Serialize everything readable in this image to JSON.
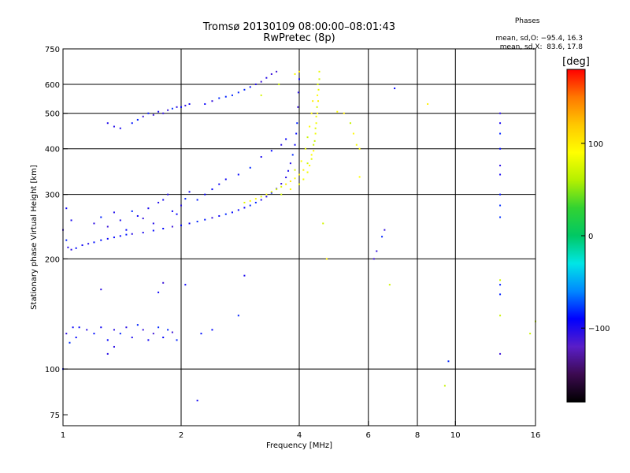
{
  "title_line1": "Tromsø 20130109 08:00:00–08:01:43",
  "title_line2": "RwPretec (8p)",
  "phase_box": {
    "heading": "Phases",
    "line_o": "mean, sd,O: −95.4, 16.3",
    "line_x": "mean, sd,X:  83.6, 17.8"
  },
  "colorbar": {
    "label": "[deg]",
    "ticks": [
      {
        "value": 100,
        "label": "100"
      },
      {
        "value": 0,
        "label": "0"
      },
      {
        "value": -100,
        "label": "−100"
      }
    ],
    "range": [
      -180,
      180
    ],
    "colors": [
      "#000000",
      "#3c0a50",
      "#5a1ec8",
      "#0000ff",
      "#0088ff",
      "#00e6e6",
      "#00c864",
      "#32d232",
      "#b4f000",
      "#ffff00",
      "#ffc800",
      "#ff7800",
      "#ff0000"
    ]
  },
  "chart_data": {
    "type": "scatter",
    "xlabel": "Frequency [MHz]",
    "ylabel": "Stationary phase Virtual Height [km]",
    "x_scale": "log",
    "y_scale": "log",
    "xlim": [
      1,
      16
    ],
    "ylim": [
      70,
      750
    ],
    "x_ticks": [
      {
        "v": 1,
        "label": "1"
      },
      {
        "v": 2,
        "label": "2"
      },
      {
        "v": 4,
        "label": "4"
      },
      {
        "v": 6,
        "label": "6"
      },
      {
        "v": 8,
        "label": "8"
      },
      {
        "v": 10,
        "label": "10"
      },
      {
        "v": 16,
        "label": "16"
      }
    ],
    "y_ticks": [
      {
        "v": 75,
        "label": "75"
      },
      {
        "v": 100,
        "label": "100"
      },
      {
        "v": 200,
        "label": "200"
      },
      {
        "v": 300,
        "label": "300"
      },
      {
        "v": 400,
        "label": "400"
      },
      {
        "v": 500,
        "label": "500"
      },
      {
        "v": 600,
        "label": "600"
      },
      {
        "v": 750,
        "label": "750"
      }
    ],
    "x_grid": [
      1,
      2,
      4,
      6,
      8,
      10,
      16
    ],
    "y_grid": [
      100,
      200,
      300,
      400,
      500,
      600
    ],
    "series": [
      {
        "name": "O",
        "phase_mean": -95.4,
        "phase_sd": 16.3,
        "points": [
          [
            1.0,
            240
          ],
          [
            1.02,
            225
          ],
          [
            1.03,
            215
          ],
          [
            1.05,
            212
          ],
          [
            1.08,
            214
          ],
          [
            1.12,
            218
          ],
          [
            1.16,
            220
          ],
          [
            1.2,
            222
          ],
          [
            1.25,
            225
          ],
          [
            1.3,
            227
          ],
          [
            1.35,
            229
          ],
          [
            1.4,
            231
          ],
          [
            1.45,
            233
          ],
          [
            1.5,
            234
          ],
          [
            1.6,
            236
          ],
          [
            1.7,
            239
          ],
          [
            1.8,
            242
          ],
          [
            1.9,
            245
          ],
          [
            2.0,
            247
          ],
          [
            2.1,
            250
          ],
          [
            2.2,
            253
          ],
          [
            2.3,
            256
          ],
          [
            2.4,
            259
          ],
          [
            2.5,
            262
          ],
          [
            2.6,
            265
          ],
          [
            2.7,
            268
          ],
          [
            2.8,
            272
          ],
          [
            2.9,
            276
          ],
          [
            3.0,
            280
          ],
          [
            3.1,
            285
          ],
          [
            3.2,
            290
          ],
          [
            3.3,
            296
          ],
          [
            3.4,
            303
          ],
          [
            3.5,
            311
          ],
          [
            3.6,
            321
          ],
          [
            3.7,
            334
          ],
          [
            3.75,
            348
          ],
          [
            3.8,
            365
          ],
          [
            3.85,
            385
          ],
          [
            3.9,
            410
          ],
          [
            3.93,
            440
          ],
          [
            3.95,
            470
          ],
          [
            3.97,
            520
          ],
          [
            3.98,
            570
          ],
          [
            4.0,
            620
          ],
          [
            1.02,
            275
          ],
          [
            1.05,
            255
          ],
          [
            1.2,
            250
          ],
          [
            1.25,
            260
          ],
          [
            1.3,
            245
          ],
          [
            1.35,
            268
          ],
          [
            1.4,
            255
          ],
          [
            1.45,
            240
          ],
          [
            1.5,
            270
          ],
          [
            1.55,
            262
          ],
          [
            1.6,
            258
          ],
          [
            1.65,
            275
          ],
          [
            1.7,
            250
          ],
          [
            1.75,
            285
          ],
          [
            1.8,
            290
          ],
          [
            1.85,
            300
          ],
          [
            1.9,
            270
          ],
          [
            1.95,
            265
          ],
          [
            2.0,
            280
          ],
          [
            2.05,
            292
          ],
          [
            2.1,
            305
          ],
          [
            2.2,
            290
          ],
          [
            2.3,
            300
          ],
          [
            2.4,
            310
          ],
          [
            2.5,
            320
          ],
          [
            2.6,
            330
          ],
          [
            2.8,
            340
          ],
          [
            3.0,
            355
          ],
          [
            3.2,
            380
          ],
          [
            3.4,
            395
          ],
          [
            3.6,
            410
          ],
          [
            3.7,
            425
          ],
          [
            1.3,
            470
          ],
          [
            1.35,
            460
          ],
          [
            1.4,
            455
          ],
          [
            1.5,
            470
          ],
          [
            1.55,
            480
          ],
          [
            1.6,
            490
          ],
          [
            1.65,
            500
          ],
          [
            1.7,
            495
          ],
          [
            1.75,
            505
          ],
          [
            1.8,
            500
          ],
          [
            1.85,
            510
          ],
          [
            1.9,
            515
          ],
          [
            1.95,
            520
          ],
          [
            2.0,
            520
          ],
          [
            2.05,
            525
          ],
          [
            2.1,
            530
          ],
          [
            2.3,
            530
          ],
          [
            2.4,
            540
          ],
          [
            2.5,
            550
          ],
          [
            2.6,
            555
          ],
          [
            2.7,
            560
          ],
          [
            2.8,
            570
          ],
          [
            2.9,
            580
          ],
          [
            3.0,
            590
          ],
          [
            3.1,
            600
          ],
          [
            3.2,
            610
          ],
          [
            3.3,
            625
          ],
          [
            3.4,
            640
          ],
          [
            3.5,
            650
          ],
          [
            1.1,
            130
          ],
          [
            1.15,
            128
          ],
          [
            1.2,
            125
          ],
          [
            1.25,
            130
          ],
          [
            1.3,
            120
          ],
          [
            1.35,
            128
          ],
          [
            1.4,
            125
          ],
          [
            1.45,
            130
          ],
          [
            1.5,
            122
          ],
          [
            1.55,
            132
          ],
          [
            1.6,
            128
          ],
          [
            1.65,
            120
          ],
          [
            1.7,
            125
          ],
          [
            1.75,
            130
          ],
          [
            1.8,
            122
          ],
          [
            1.85,
            128
          ],
          [
            1.9,
            126
          ],
          [
            1.95,
            120
          ],
          [
            1.02,
            125
          ],
          [
            1.04,
            118
          ],
          [
            1.06,
            130
          ],
          [
            1.08,
            122
          ],
          [
            1.3,
            110
          ],
          [
            1.35,
            115
          ],
          [
            1.25,
            165
          ],
          [
            1.75,
            162
          ],
          [
            1.8,
            172
          ],
          [
            2.25,
            125
          ],
          [
            2.4,
            128
          ],
          [
            1.0,
            100
          ],
          [
            2.2,
            82
          ],
          [
            6.2,
            200
          ],
          [
            6.3,
            210
          ],
          [
            6.5,
            230
          ],
          [
            6.6,
            240
          ],
          [
            7.0,
            585
          ],
          [
            9.6,
            105
          ],
          [
            13,
            110
          ],
          [
            13,
            160
          ],
          [
            13,
            170
          ],
          [
            13,
            260
          ],
          [
            13,
            280
          ],
          [
            13,
            300
          ],
          [
            13,
            340
          ],
          [
            13,
            360
          ],
          [
            13,
            400
          ],
          [
            13,
            440
          ],
          [
            13,
            470
          ],
          [
            13,
            500
          ],
          [
            2.9,
            180
          ],
          [
            2.8,
            140
          ],
          [
            2.05,
            170
          ]
        ]
      },
      {
        "name": "X",
        "phase_mean": 83.6,
        "phase_sd": 17.8,
        "points": [
          [
            2.9,
            285
          ],
          [
            3.0,
            288
          ],
          [
            3.1,
            292
          ],
          [
            3.2,
            296
          ],
          [
            3.3,
            300
          ],
          [
            3.4,
            305
          ],
          [
            3.5,
            310
          ],
          [
            3.6,
            315
          ],
          [
            3.7,
            320
          ],
          [
            3.8,
            326
          ],
          [
            3.9,
            332
          ],
          [
            4.0,
            340
          ],
          [
            4.1,
            350
          ],
          [
            4.2,
            365
          ],
          [
            4.3,
            385
          ],
          [
            4.35,
            410
          ],
          [
            4.4,
            440
          ],
          [
            4.42,
            470
          ],
          [
            4.45,
            500
          ],
          [
            4.47,
            540
          ],
          [
            4.48,
            580
          ],
          [
            4.5,
            620
          ],
          [
            4.5,
            650
          ],
          [
            3.6,
            300
          ],
          [
            3.8,
            310
          ],
          [
            4.0,
            320
          ],
          [
            4.1,
            330
          ],
          [
            4.2,
            345
          ],
          [
            4.25,
            360
          ],
          [
            4.3,
            375
          ],
          [
            4.35,
            395
          ],
          [
            4.38,
            420
          ],
          [
            4.4,
            455
          ],
          [
            4.42,
            490
          ],
          [
            4.44,
            520
          ],
          [
            4.45,
            560
          ],
          [
            4.46,
            600
          ],
          [
            3.9,
            350
          ],
          [
            4.05,
            370
          ],
          [
            4.15,
            400
          ],
          [
            4.2,
            430
          ],
          [
            4.25,
            460
          ],
          [
            4.3,
            500
          ],
          [
            4.33,
            540
          ],
          [
            4.7,
            200
          ],
          [
            5.0,
            505
          ],
          [
            5.2,
            500
          ],
          [
            5.4,
            470
          ],
          [
            5.5,
            440
          ],
          [
            5.6,
            410
          ],
          [
            5.7,
            400
          ],
          [
            8.5,
            530
          ],
          [
            9.4,
            90
          ],
          [
            6.8,
            170
          ],
          [
            13,
            140
          ],
          [
            13,
            175
          ],
          [
            15.5,
            125
          ],
          [
            16,
            135
          ],
          [
            3.9,
            640
          ],
          [
            4.0,
            650
          ],
          [
            3.2,
            560
          ],
          [
            3.55,
            600
          ],
          [
            4.6,
            250
          ],
          [
            5.7,
            335
          ]
        ]
      }
    ]
  }
}
